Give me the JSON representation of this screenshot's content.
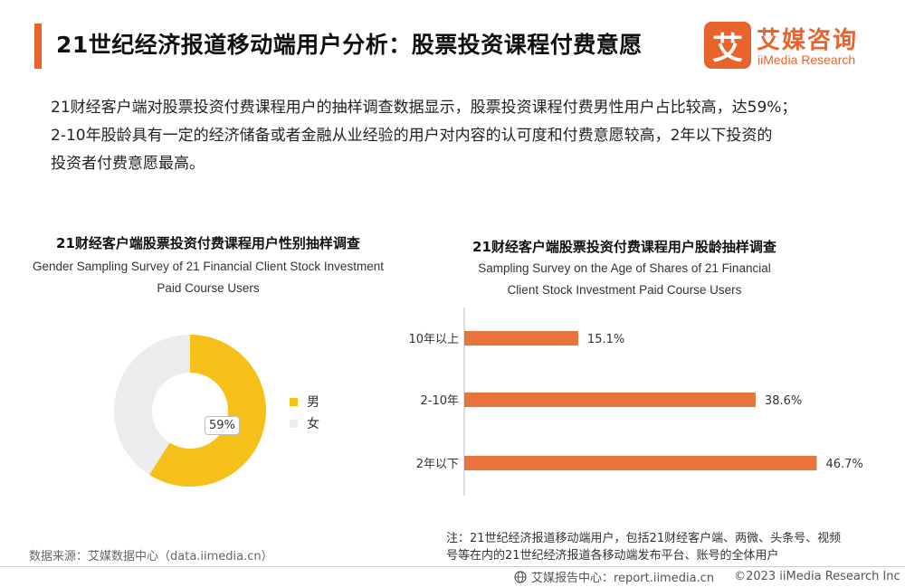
{
  "header": {
    "title": "21世纪经济报道移动端用户分析：股票投资课程付费意愿",
    "logo_mark": "艾",
    "logo_cn": "艾媒咨询",
    "logo_en": "iiMedia Research"
  },
  "description": [
    "21财经客户端对股票投资付费课程用户的抽样调查数据显示，股票投资课程付费男性用户占比较高，达59%；",
    "2-10年股龄具有一定的经济储备或者金融从业经验的用户对内容的认可度和付费意愿较高，2年以下投资的",
    "投资者付费意愿最高。"
  ],
  "colors": {
    "accent": "#e8642c",
    "male": "#f7c019",
    "female": "#ececec",
    "bar": "#e8743b"
  },
  "chart_data": [
    {
      "type": "pie",
      "title": "21财经客户端股票投资付费课程用户性别抽样调查",
      "subtitle": [
        "Gender Sampling Survey of 21 Financial Client Stock Investment",
        "Paid Course Users"
      ],
      "categories": [
        "男",
        "女"
      ],
      "values": [
        59,
        41
      ],
      "data_label": "59%",
      "legend": "right"
    },
    {
      "type": "bar",
      "orientation": "horizontal",
      "title": "21财经客户端股票投资付费课程用户股龄抽样调查",
      "subtitle": [
        "Sampling Survey on the Age of Shares of 21 Financial",
        "Client Stock Investment Paid Course Users"
      ],
      "categories": [
        "10年以上",
        "2-10年",
        "2年以下"
      ],
      "values": [
        15.1,
        38.6,
        46.7
      ],
      "labels": [
        "15.1%",
        "38.6%",
        "46.7%"
      ],
      "xlim": [
        0,
        50
      ]
    }
  ],
  "footnote": [
    "注：21世纪经济报道移动端用户，包括21财经客户端、两微、头条号、视频",
    "号等在内的21世纪经济报道各移动端发布平台、账号的全体用户"
  ],
  "source": "数据来源：艾媒数据中心（data.iimedia.cn）",
  "footer": {
    "center": "艾媒报告中心：report.iimedia.cn",
    "copyright": "©2023  iiMedia Research  Inc"
  }
}
